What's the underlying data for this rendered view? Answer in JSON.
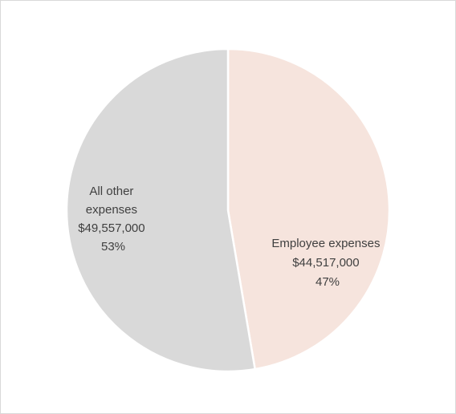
{
  "chart_data": {
    "type": "pie",
    "slices": [
      {
        "name": "Employee expenses",
        "value": 44517000,
        "value_label": "$44,517,000",
        "percent_label": "47%",
        "color": "#f6e4dd"
      },
      {
        "name": "All other expenses",
        "name_lines": [
          "All other",
          "expenses"
        ],
        "value": 49557000,
        "value_label": "$49,557,000",
        "percent_label": "53%",
        "color": "#d9d9d9"
      }
    ],
    "slice_border_color": "#ffffff",
    "legend": "none"
  }
}
